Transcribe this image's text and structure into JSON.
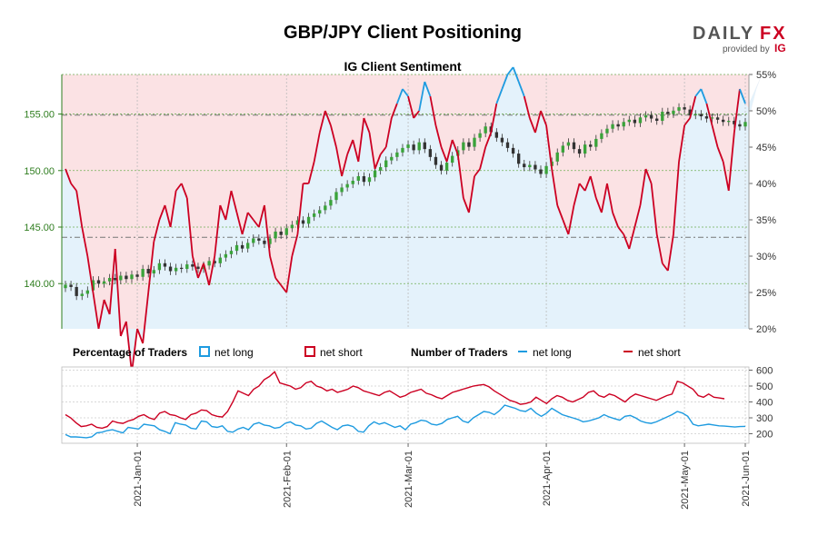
{
  "header": {
    "title": "GBP/JPY Client Positioning",
    "subtitle": "IG Client Sentiment"
  },
  "logo": {
    "brand_left": "DAILY",
    "brand_right": "FX",
    "provided_by": "provided by",
    "ig": "IG"
  },
  "colors": {
    "up_candle": "#3aa33a",
    "down_candle": "#333333",
    "net_long": "#1e9be0",
    "net_short": "#cc0022",
    "short_zone": "#fbe2e4",
    "long_zone": "#e4f2fb",
    "grid": "#6fae55"
  },
  "legend": {
    "pct_title": "Percentage of Traders",
    "pct_long": "net long",
    "pct_short": "net short",
    "num_title": "Number of Traders",
    "num_long": "net long",
    "num_short": "net short"
  },
  "chart_data": [
    {
      "type": "candlestick",
      "title": "IG Client Sentiment",
      "series_name": "GBP/JPY price",
      "price_axis_left": {
        "ticks": [
          "140.00",
          "145.00",
          "150.00",
          "155.00"
        ],
        "ylim": [
          136.0,
          158.5
        ]
      },
      "percent_axis_right": {
        "ticks": [
          "20%",
          "25%",
          "30%",
          "35%",
          "40%",
          "45%",
          "50%",
          "55%"
        ],
        "ylim": [
          20,
          55
        ]
      },
      "reference_lines": [
        154.9,
        144.1
      ],
      "x_labels": [
        "2021-Jan-01",
        "2021-Feb-01",
        "2021-Mar-01",
        "2021-Apr-01",
        "2021-May-01",
        "2021-Jun-01"
      ],
      "close": [
        139.9,
        139.7,
        138.9,
        139.1,
        139.4,
        140.3,
        140.0,
        140.2,
        140.5,
        140.3,
        140.7,
        140.4,
        140.8,
        140.6,
        141.3,
        140.9,
        141.2,
        141.8,
        141.5,
        141.1,
        141.4,
        141.3,
        141.7,
        141.5,
        141.3,
        141.6,
        142.0,
        141.8,
        142.3,
        142.6,
        142.9,
        143.4,
        143.1,
        143.6,
        144.0,
        143.8,
        143.5,
        144.0,
        144.6,
        144.3,
        144.9,
        145.2,
        145.6,
        145.3,
        145.9,
        146.2,
        146.5,
        146.9,
        147.4,
        148.1,
        148.5,
        148.8,
        149.1,
        149.5,
        149.0,
        149.4,
        150.0,
        150.3,
        150.9,
        151.2,
        151.6,
        152.0,
        152.3,
        151.8,
        152.5,
        151.9,
        151.2,
        150.5,
        150.0,
        150.7,
        151.3,
        151.8,
        152.5,
        152.1,
        152.9,
        153.3,
        153.9,
        153.4,
        152.9,
        152.5,
        152.0,
        151.5,
        150.6,
        150.3,
        150.5,
        150.1,
        149.7,
        150.4,
        150.8,
        151.6,
        152.2,
        152.5,
        151.9,
        151.5,
        152.3,
        152.1,
        152.8,
        153.3,
        153.7,
        154.1,
        153.9,
        154.3,
        154.5,
        154.2,
        154.7,
        154.9,
        154.6,
        154.4,
        155.2,
        155.0,
        155.3,
        155.6,
        155.4,
        154.9,
        155.0,
        154.8,
        154.6,
        154.7,
        154.5,
        154.3,
        154.4,
        154.1,
        153.9,
        154.3
      ],
      "percent_long": [
        42,
        40,
        39,
        34,
        30,
        25,
        20,
        24,
        22,
        31,
        19,
        21,
        14,
        20,
        18,
        25,
        32,
        35,
        37,
        34,
        39,
        40,
        38,
        30,
        27,
        29,
        26,
        30,
        37,
        35,
        39,
        36,
        33,
        36,
        35,
        34,
        37,
        30,
        27,
        26,
        25,
        30,
        33,
        40,
        40,
        43,
        47,
        50,
        48,
        45,
        41,
        44,
        46,
        43,
        49,
        47,
        42,
        44,
        45,
        49,
        51,
        53,
        52,
        49,
        50,
        54,
        52,
        48,
        45,
        43,
        46,
        44,
        38,
        36,
        41,
        42,
        45,
        47,
        51,
        53,
        55,
        56,
        54,
        52,
        49,
        47,
        50,
        48,
        42,
        37,
        35,
        33,
        37,
        40,
        39,
        41,
        38,
        36,
        40,
        36,
        34,
        33,
        31,
        34,
        37,
        42,
        40,
        33,
        29,
        28,
        33,
        43,
        48,
        49,
        52,
        53,
        51,
        48,
        45,
        43,
        39,
        47,
        53,
        51,
        50,
        53,
        55
      ],
      "percent_long_scale": "percent, y axis 20-55%"
    },
    {
      "type": "line",
      "title": "Number of Traders",
      "y_axis_ticks": [
        "200",
        "300",
        "400",
        "500",
        "600"
      ],
      "ylim": [
        140,
        620
      ],
      "x_labels": [
        "2021-Jan-01",
        "2021-Feb-01",
        "2021-Mar-01",
        "2021-Apr-01",
        "2021-May-01",
        "2021-Jun-01"
      ],
      "series": [
        {
          "name": "net long",
          "values": [
            195,
            180,
            180,
            178,
            175,
            180,
            205,
            210,
            220,
            225,
            215,
            205,
            240,
            235,
            230,
            260,
            255,
            250,
            225,
            215,
            200,
            270,
            260,
            255,
            235,
            230,
            280,
            275,
            245,
            240,
            250,
            215,
            210,
            230,
            240,
            225,
            260,
            270,
            255,
            250,
            235,
            240,
            265,
            275,
            255,
            250,
            230,
            235,
            265,
            280,
            260,
            240,
            225,
            250,
            255,
            245,
            215,
            210,
            250,
            275,
            260,
            270,
            255,
            240,
            250,
            225,
            260,
            270,
            285,
            280,
            260,
            255,
            265,
            290,
            300,
            310,
            280,
            270,
            300,
            320,
            340,
            335,
            320,
            345,
            380,
            370,
            360,
            345,
            340,
            360,
            330,
            310,
            330,
            360,
            340,
            320,
            310,
            300,
            290,
            275,
            280,
            290,
            300,
            320,
            305,
            295,
            285,
            310,
            315,
            300,
            280,
            270,
            265,
            275,
            290,
            305,
            320,
            340,
            330,
            310,
            260,
            250,
            255,
            260,
            255,
            250,
            248,
            245,
            242,
            245,
            246
          ]
        },
        {
          "name": "net short",
          "values": [
            320,
            300,
            270,
            245,
            250,
            260,
            240,
            235,
            245,
            280,
            270,
            265,
            280,
            290,
            310,
            320,
            300,
            290,
            330,
            340,
            320,
            315,
            300,
            290,
            320,
            330,
            350,
            345,
            320,
            310,
            305,
            340,
            400,
            470,
            455,
            440,
            480,
            500,
            540,
            560,
            590,
            520,
            510,
            500,
            480,
            490,
            520,
            530,
            500,
            490,
            470,
            480,
            460,
            470,
            480,
            500,
            490,
            470,
            460,
            450,
            440,
            460,
            470,
            450,
            430,
            440,
            460,
            470,
            480,
            455,
            445,
            430,
            420,
            440,
            460,
            470,
            480,
            490,
            500,
            505,
            510,
            495,
            470,
            450,
            430,
            410,
            400,
            385,
            390,
            400,
            430,
            410,
            390,
            420,
            440,
            430,
            410,
            400,
            415,
            430,
            460,
            470,
            440,
            430,
            450,
            440,
            420,
            400,
            430,
            450,
            440,
            430,
            420,
            410,
            425,
            440,
            450,
            530,
            520,
            500,
            480,
            440,
            430,
            450,
            430,
            425,
            420
          ]
        }
      ]
    }
  ]
}
